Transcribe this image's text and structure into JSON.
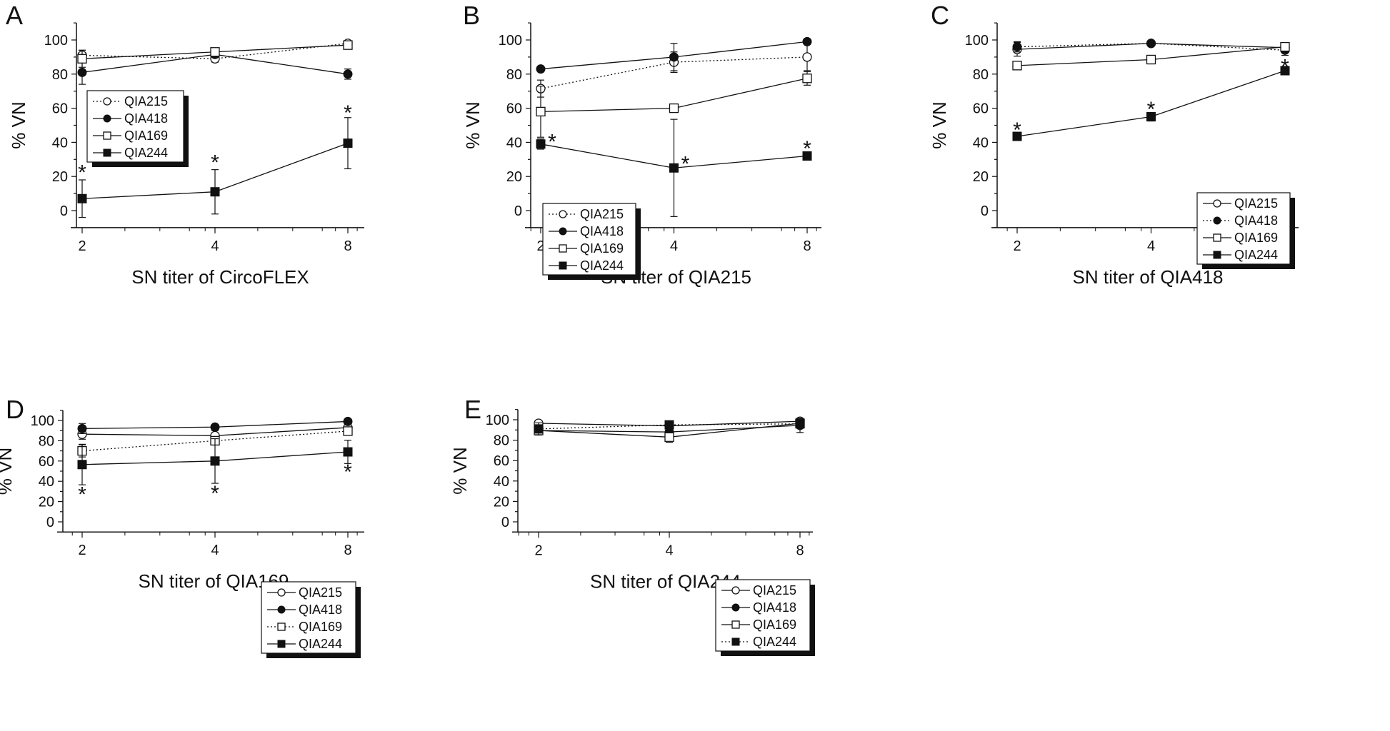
{
  "chart_data": [
    {
      "type": "line",
      "panel": "A",
      "title": "",
      "xlabel": "SN titer of CircoFLEX",
      "ylabel": "% VN",
      "x": [
        2,
        4,
        8
      ],
      "x_scale": "log2",
      "xticks": [
        "2",
        "4",
        "8"
      ],
      "yticks": [
        "0",
        "20",
        "40",
        "60",
        "80",
        "100"
      ],
      "ylim": [
        -10,
        110
      ],
      "grid": false,
      "legend_position": "middle-left",
      "series": [
        {
          "name": "QIA215",
          "marker": "open-circle",
          "line": "dotted",
          "values": [
            91,
            89,
            98
          ],
          "err": [
            3,
            2,
            1
          ]
        },
        {
          "name": "QIA418",
          "marker": "filled-circle",
          "line": "solid",
          "values": [
            81,
            91.5,
            80
          ],
          "err": [
            7,
            1,
            3
          ]
        },
        {
          "name": "QIA169",
          "marker": "open-square",
          "line": "solid",
          "values": [
            89,
            93,
            97
          ],
          "err": [
            5,
            1,
            1
          ]
        },
        {
          "name": "QIA244",
          "marker": "filled-square",
          "line": "solid",
          "values": [
            7,
            11,
            39.5
          ],
          "err": [
            11,
            13,
            15
          ]
        }
      ],
      "annotations": [
        {
          "text": "*",
          "x": 2,
          "y": 24
        },
        {
          "text": "*",
          "x": 4,
          "y": 30
        },
        {
          "text": "*",
          "x": 8,
          "y": 59
        }
      ]
    },
    {
      "type": "line",
      "panel": "B",
      "title": "",
      "xlabel": "SN titer of QIA215",
      "ylabel": "% VN",
      "x": [
        2,
        4,
        8
      ],
      "x_scale": "log2",
      "xticks": [
        "2",
        "4",
        "8"
      ],
      "yticks": [
        "0",
        "20",
        "40",
        "60",
        "80",
        "100"
      ],
      "ylim": [
        -10,
        110
      ],
      "grid": false,
      "legend_position": "bottom-left",
      "series": [
        {
          "name": "QIA215",
          "marker": "open-circle",
          "line": "dotted",
          "values": [
            71.5,
            87,
            90
          ],
          "err": [
            5,
            6,
            8
          ]
        },
        {
          "name": "QIA418",
          "marker": "filled-circle",
          "line": "solid",
          "values": [
            83,
            90,
            99
          ],
          "err": [
            1,
            8,
            1
          ]
        },
        {
          "name": "QIA169",
          "marker": "open-square",
          "line": "solid",
          "values": [
            58,
            60,
            77.5
          ],
          "err": [
            15,
            1,
            4
          ]
        },
        {
          "name": "QIA244",
          "marker": "filled-square",
          "line": "solid",
          "values": [
            39,
            25,
            32
          ],
          "err": [
            3,
            28.5,
            1
          ]
        }
      ],
      "annotations": [
        {
          "text": "*",
          "x": 2,
          "y": 42,
          "side": "right"
        },
        {
          "text": "*",
          "x": 4,
          "y": 29,
          "side": "right"
        },
        {
          "text": "*",
          "x": 8,
          "y": 38
        }
      ]
    },
    {
      "type": "line",
      "panel": "C",
      "title": "",
      "xlabel": "SN titer of QIA418",
      "ylabel": "% VN",
      "x": [
        2,
        4,
        8
      ],
      "x_scale": "log2",
      "xticks": [
        "2",
        "4",
        "8"
      ],
      "yticks": [
        "0",
        "20",
        "40",
        "60",
        "80",
        "100"
      ],
      "ylim": [
        -10,
        110
      ],
      "grid": false,
      "legend_position": "bottom-right",
      "series": [
        {
          "name": "QIA215",
          "marker": "open-circle",
          "line": "solid",
          "values": [
            94.5,
            98,
            95.5
          ],
          "err": [
            4,
            1,
            2
          ]
        },
        {
          "name": "QIA418",
          "marker": "filled-circle",
          "line": "dotted",
          "values": [
            96,
            98,
            94
          ],
          "err": [
            3,
            1,
            3
          ]
        },
        {
          "name": "QIA169",
          "marker": "open-square",
          "line": "solid",
          "values": [
            85,
            88.5,
            96
          ],
          "err": [
            1,
            2.5,
            2
          ]
        },
        {
          "name": "QIA244",
          "marker": "filled-square",
          "line": "solid",
          "values": [
            43.5,
            55,
            82
          ],
          "err": [
            0.5,
            2.5,
            2
          ]
        }
      ],
      "annotations": [
        {
          "text": "*",
          "x": 2,
          "y": 49
        },
        {
          "text": "*",
          "x": 4,
          "y": 61
        },
        {
          "text": "*",
          "x": 8,
          "y": 86
        }
      ]
    },
    {
      "type": "line",
      "panel": "D",
      "title": "",
      "xlabel": "SN titer of QIA169",
      "ylabel": "% VN",
      "x": [
        2,
        4,
        8
      ],
      "x_scale": "log2",
      "xticks": [
        "2",
        "4",
        "8"
      ],
      "yticks": [
        "0",
        "20",
        "40",
        "60",
        "80",
        "100"
      ],
      "ylim": [
        -10,
        110
      ],
      "grid": false,
      "legend_position": "bottom-right",
      "series": [
        {
          "name": "QIA215",
          "marker": "open-circle",
          "line": "solid",
          "values": [
            86.5,
            85,
            93
          ],
          "err": [
            5,
            5,
            2
          ]
        },
        {
          "name": "QIA418",
          "marker": "filled-circle",
          "line": "solid",
          "values": [
            92,
            93.5,
            99
          ],
          "err": [
            5,
            0.5,
            0.5
          ]
        },
        {
          "name": "QIA169",
          "marker": "open-square",
          "line": "dotted",
          "values": [
            70,
            80,
            89.5
          ],
          "err": [
            6,
            4,
            3.5
          ]
        },
        {
          "name": "QIA244",
          "marker": "filled-square",
          "line": "solid",
          "values": [
            56.5,
            60,
            69
          ],
          "err": [
            20,
            22,
            11.5
          ]
        }
      ],
      "annotations": [
        {
          "text": "*",
          "x": 2,
          "y": 30
        },
        {
          "text": "*",
          "x": 4,
          "y": 31
        },
        {
          "text": "*",
          "x": 8,
          "y": 52
        }
      ]
    },
    {
      "type": "line",
      "panel": "E",
      "title": "",
      "xlabel": "SN titer of QIA244",
      "ylabel": "% VN",
      "x": [
        2,
        4,
        8
      ],
      "x_scale": "log2",
      "xticks": [
        "2",
        "4",
        "8"
      ],
      "yticks": [
        "0",
        "20",
        "40",
        "60",
        "80",
        "100"
      ],
      "ylim": [
        -10,
        110
      ],
      "grid": false,
      "legend_position": "bottom-right",
      "series": [
        {
          "name": "QIA215",
          "marker": "open-circle",
          "line": "solid",
          "values": [
            96.5,
            94,
            98.5
          ],
          "err": [
            1.5,
            3,
            2
          ]
        },
        {
          "name": "QIA418",
          "marker": "filled-circle",
          "line": "solid",
          "values": [
            89.5,
            88,
            94.5
          ],
          "err": [
            3,
            3,
            7
          ]
        },
        {
          "name": "QIA169",
          "marker": "open-square",
          "line": "solid",
          "values": [
            89.5,
            83,
            96.5
          ],
          "err": [
            3,
            5,
            2
          ]
        },
        {
          "name": "QIA244",
          "marker": "filled-square",
          "line": "dotted",
          "values": [
            91,
            95,
            96
          ],
          "err": [
            6,
            2,
            3
          ]
        }
      ],
      "annotations": []
    }
  ]
}
